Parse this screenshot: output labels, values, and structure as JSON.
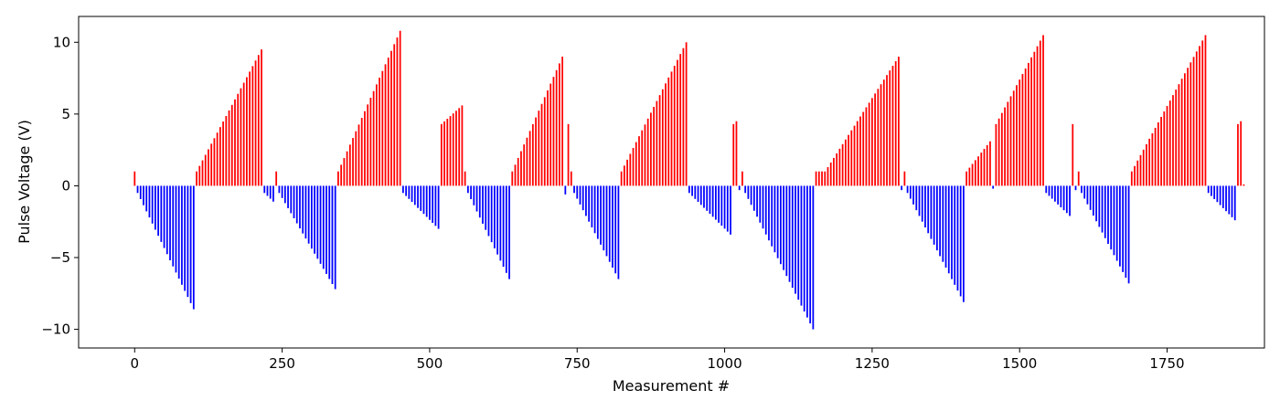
{
  "chart_data": {
    "type": "bar",
    "title": "",
    "xlabel": "Measurement #",
    "ylabel": "Pulse Voltage (V)",
    "xlim": [
      -95,
      1915
    ],
    "ylim": [
      -11.3,
      11.8
    ],
    "xticks": [
      0,
      250,
      500,
      750,
      1000,
      1250,
      1500,
      1750
    ],
    "yticks": [
      -10,
      -5,
      0,
      5,
      10
    ],
    "grid": false,
    "legend": "none",
    "bar_step": 5,
    "colors": {
      "positive": "#ff0000",
      "negative": "#0000ff"
    },
    "segments": [
      {
        "x_start": 0,
        "x_end": 0,
        "start": 1.0,
        "end": 1.0
      },
      {
        "x_start": 5,
        "x_end": 100,
        "start": -0.5,
        "end": -8.6
      },
      {
        "x_start": 105,
        "x_end": 215,
        "start": 1.0,
        "end": 9.5
      },
      {
        "x_start": 220,
        "x_end": 235,
        "start": -0.5,
        "end": -1.1
      },
      {
        "x_start": 240,
        "x_end": 240,
        "start": 1.0,
        "end": 1.0
      },
      {
        "x_start": 245,
        "x_end": 340,
        "start": -0.5,
        "end": -7.2
      },
      {
        "x_start": 345,
        "x_end": 450,
        "start": 1.0,
        "end": 10.8
      },
      {
        "x_start": 455,
        "x_end": 515,
        "start": -0.5,
        "end": -3.0
      },
      {
        "x_start": 520,
        "x_end": 555,
        "start": 4.3,
        "end": 5.6
      },
      {
        "x_start": 560,
        "x_end": 560,
        "start": 1.0,
        "end": 1.0
      },
      {
        "x_start": 565,
        "x_end": 635,
        "start": -0.5,
        "end": -6.5
      },
      {
        "x_start": 640,
        "x_end": 725,
        "start": 1.0,
        "end": 9.0
      },
      {
        "x_start": 730,
        "x_end": 730,
        "start": -0.6,
        "end": -0.6
      },
      {
        "x_start": 735,
        "x_end": 735,
        "start": 4.3,
        "end": 4.3
      },
      {
        "x_start": 740,
        "x_end": 740,
        "start": 1.0,
        "end": 1.0
      },
      {
        "x_start": 745,
        "x_end": 820,
        "start": -0.5,
        "end": -6.5
      },
      {
        "x_start": 825,
        "x_end": 935,
        "start": 1.0,
        "end": 10.0
      },
      {
        "x_start": 940,
        "x_end": 1010,
        "start": -0.5,
        "end": -3.4
      },
      {
        "x_start": 1015,
        "x_end": 1020,
        "start": 4.3,
        "end": 4.5
      },
      {
        "x_start": 1025,
        "x_end": 1025,
        "start": -0.3,
        "end": -0.3
      },
      {
        "x_start": 1030,
        "x_end": 1030,
        "start": 1.0,
        "end": 1.0
      },
      {
        "x_start": 1035,
        "x_end": 1150,
        "start": -0.5,
        "end": -10.0
      },
      {
        "x_start": 1155,
        "x_end": 1170,
        "start": 1.0,
        "end": 1.0
      },
      {
        "x_start": 1175,
        "x_end": 1295,
        "start": 1.3,
        "end": 9.0
      },
      {
        "x_start": 1300,
        "x_end": 1300,
        "start": -0.3,
        "end": -0.3
      },
      {
        "x_start": 1305,
        "x_end": 1305,
        "start": 1.0,
        "end": 1.0
      },
      {
        "x_start": 1310,
        "x_end": 1405,
        "start": -0.5,
        "end": -8.1
      },
      {
        "x_start": 1410,
        "x_end": 1450,
        "start": 1.0,
        "end": 3.1
      },
      {
        "x_start": 1455,
        "x_end": 1455,
        "start": -0.2,
        "end": -0.2
      },
      {
        "x_start": 1460,
        "x_end": 1540,
        "start": 4.3,
        "end": 10.5
      },
      {
        "x_start": 1545,
        "x_end": 1585,
        "start": -0.5,
        "end": -2.1
      },
      {
        "x_start": 1590,
        "x_end": 1590,
        "start": 4.3,
        "end": 4.3
      },
      {
        "x_start": 1595,
        "x_end": 1595,
        "start": -0.3,
        "end": -0.3
      },
      {
        "x_start": 1600,
        "x_end": 1600,
        "start": 1.0,
        "end": 1.0
      },
      {
        "x_start": 1605,
        "x_end": 1685,
        "start": -0.5,
        "end": -6.8
      },
      {
        "x_start": 1690,
        "x_end": 1815,
        "start": 1.0,
        "end": 10.5
      },
      {
        "x_start": 1820,
        "x_end": 1865,
        "start": -0.5,
        "end": -2.4
      },
      {
        "x_start": 1870,
        "x_end": 1875,
        "start": 4.3,
        "end": 4.5
      },
      {
        "x_start": 1880,
        "x_end": 1880,
        "start": 0.1,
        "end": 0.1
      }
    ]
  }
}
